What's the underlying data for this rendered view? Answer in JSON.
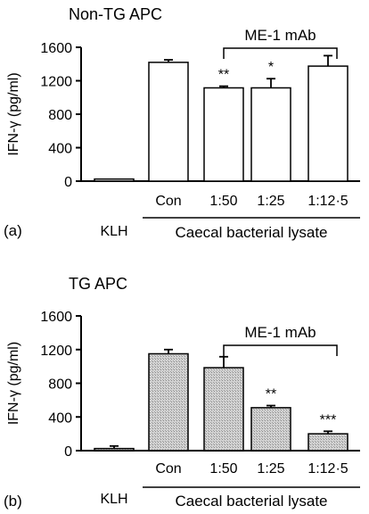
{
  "chart_data": [
    {
      "type": "bar",
      "panel_label": "(a)",
      "title": "Non-TG APC",
      "ylabel": "IFN-γ (pg/ml)",
      "ylim": [
        0,
        1600
      ],
      "yticks": [
        "0",
        "400",
        "800",
        "1200",
        "1600"
      ],
      "categories": [
        "KLH",
        "Con",
        "1:50",
        "1:25",
        "1:12·5"
      ],
      "values": [
        25,
        1420,
        1115,
        1115,
        1375
      ],
      "errors": [
        0,
        30,
        20,
        110,
        125
      ],
      "annotations": [
        "",
        "",
        "**",
        "*",
        ""
      ],
      "fill": "#ffffff",
      "bracket_label": "ME-1 mAb",
      "group_label": "Caecal bacterial lysate"
    },
    {
      "type": "bar",
      "panel_label": "(b)",
      "title": "TG APC",
      "ylabel": "IFN-γ (pg/ml)",
      "ylim": [
        0,
        1600
      ],
      "yticks": [
        "0",
        "400",
        "800",
        "1200",
        "1600"
      ],
      "categories": [
        "KLH",
        "Con",
        "1:50",
        "1:25",
        "1:12·5"
      ],
      "values": [
        25,
        1150,
        985,
        510,
        200
      ],
      "errors": [
        30,
        50,
        130,
        25,
        30
      ],
      "annotations": [
        "",
        "",
        "",
        "**",
        "***"
      ],
      "fill": "#c8c8c8",
      "bracket_label": "ME-1 mAb",
      "group_label": "Caecal bacterial lysate"
    }
  ]
}
